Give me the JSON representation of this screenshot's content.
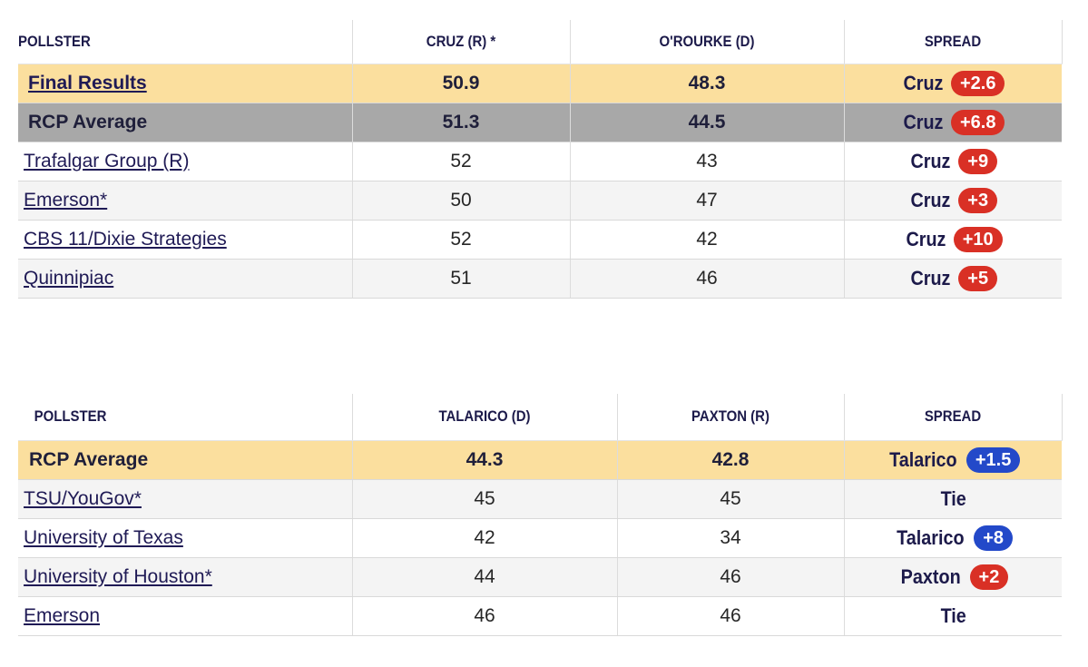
{
  "table1": {
    "headers": [
      "POLLSTER",
      "CRUZ (R) *",
      "O'ROURKE (D)",
      "SPREAD"
    ],
    "final": {
      "pollster": "Final Results",
      "a": "50.9",
      "b": "48.3",
      "leader": "Cruz",
      "margin": "+2.6"
    },
    "average": {
      "pollster": "RCP Average",
      "a": "51.3",
      "b": "44.5",
      "leader": "Cruz",
      "margin": "+6.8"
    },
    "rows": [
      {
        "pollster": "Trafalgar Group (R)",
        "a": "52",
        "b": "43",
        "leader": "Cruz",
        "margin": "+9"
      },
      {
        "pollster": "Emerson*",
        "a": "50",
        "b": "47",
        "leader": "Cruz",
        "margin": "+3"
      },
      {
        "pollster": "CBS 11/Dixie Strategies",
        "a": "52",
        "b": "42",
        "leader": "Cruz",
        "margin": "+10"
      },
      {
        "pollster": "Quinnipiac",
        "a": "51",
        "b": "46",
        "leader": "Cruz",
        "margin": "+5"
      }
    ]
  },
  "table2": {
    "headers": [
      "POLLSTER",
      "TALARICO (D)",
      "PAXTON (R)",
      "SPREAD"
    ],
    "average": {
      "pollster": "RCP Average",
      "a": "44.3",
      "b": "42.8",
      "leader": "Talarico",
      "margin": "+1.5"
    },
    "rows": [
      {
        "pollster": "TSU/YouGov*",
        "a": "45",
        "b": "45",
        "leader": "Tie",
        "margin": ""
      },
      {
        "pollster": "University of Texas",
        "a": "42",
        "b": "34",
        "leader": "Talarico",
        "margin": "+8"
      },
      {
        "pollster": "University of Houston*",
        "a": "44",
        "b": "46",
        "leader": "Paxton",
        "margin": "+2"
      },
      {
        "pollster": "Emerson",
        "a": "46",
        "b": "46",
        "leader": "Tie",
        "margin": ""
      }
    ]
  },
  "colors": {
    "republican": "#d93025",
    "democrat": "#2349c9",
    "highlight": "#fbdf9e",
    "average_gray": "#a8a8a8"
  }
}
